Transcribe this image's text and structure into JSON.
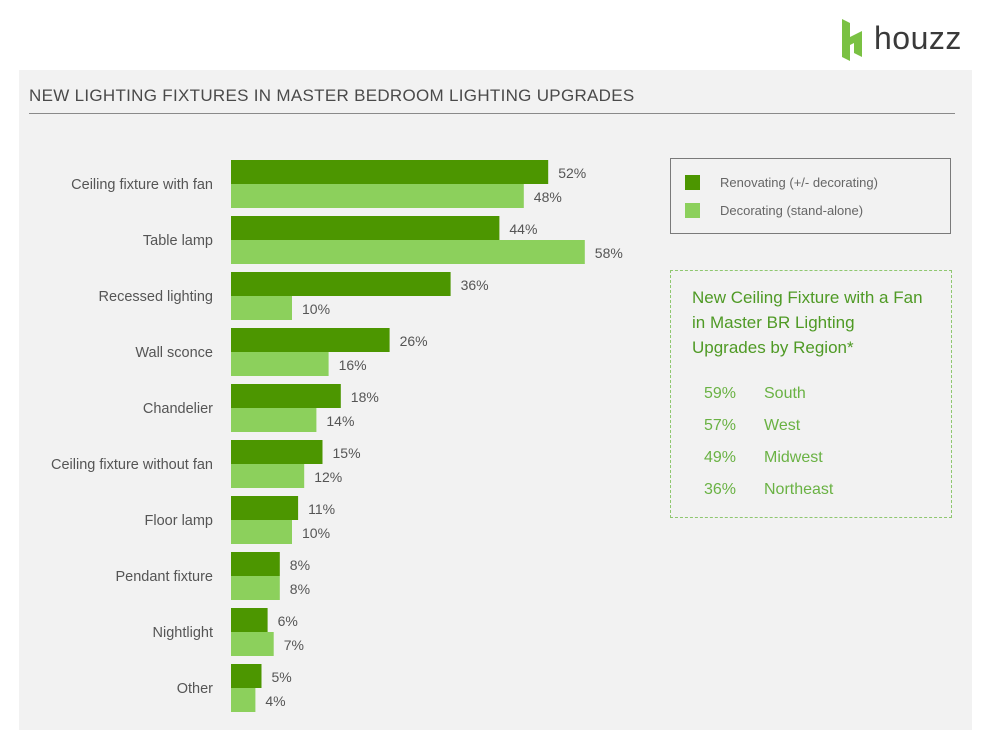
{
  "brand": {
    "name": "houzz",
    "logo_icon": "houzz-leaf-logo-icon",
    "logo_color": "#7ac143"
  },
  "title": "NEW LIGHTING FIXTURES IN MASTER BEDROOM LIGHTING UPGRADES",
  "colors": {
    "renovating": "#4c9600",
    "decorating": "#8cd05c",
    "panel_bg": "#f2f2f2",
    "text": "#555555"
  },
  "legend": {
    "items": [
      {
        "label": "Renovating (+/- decorating)",
        "color": "#4c9600"
      },
      {
        "label": "Decorating (stand-alone)",
        "color": "#8cd05c"
      }
    ]
  },
  "chart_data": {
    "type": "bar",
    "orientation": "horizontal",
    "title": "NEW LIGHTING FIXTURES IN MASTER BEDROOM LIGHTING UPGRADES",
    "categories": [
      "Ceiling fixture with fan",
      "Table lamp",
      "Recessed lighting",
      "Wall sconce",
      "Chandelier",
      "Ceiling fixture without fan",
      "Floor lamp",
      "Pendant fixture",
      "Nightlight",
      "Other"
    ],
    "series": [
      {
        "name": "Renovating (+/- decorating)",
        "values": [
          52,
          44,
          36,
          26,
          18,
          15,
          11,
          8,
          6,
          5
        ]
      },
      {
        "name": "Decorating (stand-alone)",
        "values": [
          48,
          58,
          10,
          16,
          14,
          12,
          10,
          8,
          7,
          4
        ]
      }
    ],
    "value_format": "percent",
    "xlim": [
      0,
      100
    ],
    "grid": false,
    "legend_position": "top-right"
  },
  "region_box": {
    "title": "New Ceiling Fixture with a Fan in Master BR Lighting Upgrades by Region*",
    "rows": [
      {
        "pct": "59%",
        "region": "South"
      },
      {
        "pct": "57%",
        "region": "West"
      },
      {
        "pct": "49%",
        "region": "Midwest"
      },
      {
        "pct": "36%",
        "region": "Northeast"
      }
    ]
  }
}
